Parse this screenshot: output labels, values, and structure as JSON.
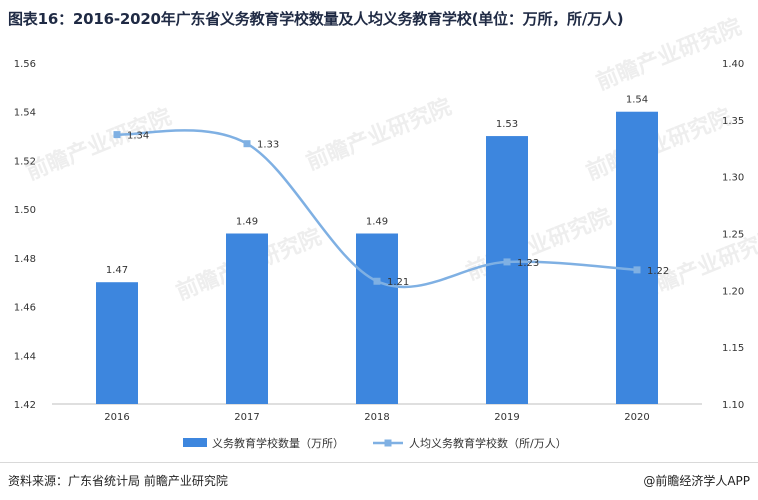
{
  "title": "图表16：2016-2020年广东省义务教育学校数量及人均义务教育学校(单位：万所，所/万人)",
  "watermark": "前瞻产业研究院",
  "footer": {
    "source": "资料来源：广东省统计局 前瞻产业研究院",
    "brand": "@前瞻经济学人APP"
  },
  "chart_data": {
    "type": "bar+line",
    "categories": [
      "2016",
      "2017",
      "2018",
      "2019",
      "2020"
    ],
    "series": [
      {
        "name": "义务教育学校数量（万所）",
        "type": "bar",
        "axis": "left",
        "color": "#3d86de",
        "values": [
          1.47,
          1.49,
          1.49,
          1.53,
          1.54
        ],
        "labels": [
          "1.47",
          "1.49",
          "1.49",
          "1.53",
          "1.54"
        ]
      },
      {
        "name": "人均义务教育学校数（所/万人）",
        "type": "line",
        "axis": "right",
        "color": "#7fb0e3",
        "smooth": true,
        "values": [
          1.337,
          1.329,
          1.208,
          1.225,
          1.218
        ],
        "labels": [
          "1.34",
          "1.33",
          "1.21",
          "1.23",
          "1.22"
        ]
      }
    ],
    "y_left": {
      "ylim": [
        1.42,
        1.56
      ],
      "ticks": [
        "1.42",
        "1.44",
        "1.46",
        "1.48",
        "1.50",
        "1.52",
        "1.54",
        "1.56"
      ]
    },
    "y_right": {
      "ylim": [
        1.1,
        1.4
      ],
      "ticks": [
        "1.10",
        "1.15",
        "1.20",
        "1.25",
        "1.30",
        "1.35",
        "1.40"
      ]
    },
    "grid": false,
    "legend": "bottom"
  }
}
